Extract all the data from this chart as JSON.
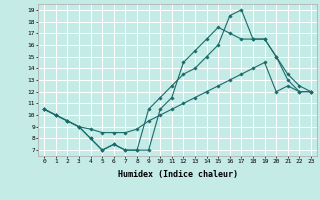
{
  "xlabel": "Humidex (Indice chaleur)",
  "background_color": "#c5ebe6",
  "grid_color": "#ffffff",
  "line_color": "#1a6b6b",
  "xlim": [
    -0.5,
    23.5
  ],
  "ylim": [
    6.5,
    19.5
  ],
  "xticks": [
    0,
    1,
    2,
    3,
    4,
    5,
    6,
    7,
    8,
    9,
    10,
    11,
    12,
    13,
    14,
    15,
    16,
    17,
    18,
    19,
    20,
    21,
    22,
    23
  ],
  "yticks": [
    7,
    8,
    9,
    10,
    11,
    12,
    13,
    14,
    15,
    16,
    17,
    18,
    19
  ],
  "series1_x": [
    0,
    1,
    2,
    3,
    4,
    5,
    6,
    7,
    8,
    9,
    10,
    11,
    12,
    13,
    14,
    15,
    16,
    17,
    18,
    19,
    20,
    21,
    22,
    23
  ],
  "series1_y": [
    10.5,
    10.0,
    9.5,
    9.0,
    8.0,
    7.0,
    7.5,
    7.0,
    7.0,
    7.0,
    10.5,
    11.5,
    14.5,
    15.5,
    16.5,
    17.5,
    17.0,
    16.5,
    16.5,
    16.5,
    15.0,
    13.0,
    12.0,
    12.0
  ],
  "series2_x": [
    0,
    1,
    2,
    3,
    4,
    5,
    6,
    7,
    8,
    9,
    10,
    11,
    12,
    13,
    14,
    15,
    16,
    17,
    18,
    19,
    20,
    21,
    22,
    23
  ],
  "series2_y": [
    10.5,
    10.0,
    9.5,
    9.0,
    8.0,
    7.0,
    7.5,
    7.0,
    7.0,
    10.5,
    11.5,
    12.5,
    13.5,
    14.0,
    15.0,
    16.0,
    18.5,
    19.0,
    16.5,
    16.5,
    15.0,
    13.5,
    12.5,
    12.0
  ],
  "series3_x": [
    0,
    1,
    2,
    3,
    4,
    5,
    6,
    7,
    8,
    9,
    10,
    11,
    12,
    13,
    14,
    15,
    16,
    17,
    18,
    19,
    20,
    21,
    22,
    23
  ],
  "series3_y": [
    10.5,
    10.0,
    9.5,
    9.0,
    8.8,
    8.5,
    8.5,
    8.5,
    8.8,
    9.5,
    10.0,
    10.5,
    11.0,
    11.5,
    12.0,
    12.5,
    13.0,
    13.5,
    14.0,
    14.5,
    12.0,
    12.5,
    12.0,
    12.0
  ]
}
